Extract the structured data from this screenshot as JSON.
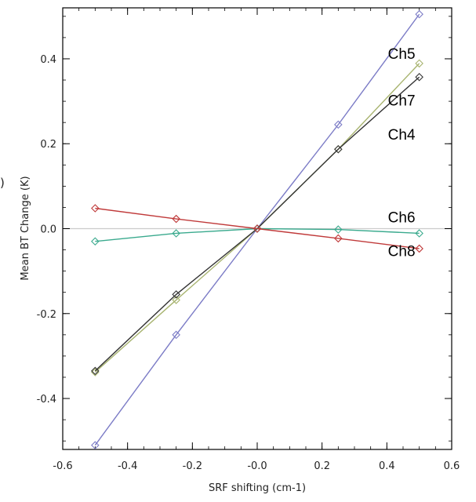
{
  "chart_data": {
    "type": "line",
    "title": "",
    "xlabel": "SRF shifting (cm-1)",
    "ylabel": "Mean BT Change (K)",
    "xlim": [
      -0.6,
      0.6
    ],
    "ylim": [
      -0.52,
      0.52
    ],
    "xticks": [
      "-0.6",
      "-0.4",
      "-0.2",
      "-0.0",
      "0.2",
      "0.4",
      "0.6"
    ],
    "yticks": [
      "-0.4",
      "-0.2",
      "0.0",
      "0.2",
      "0.4"
    ],
    "grid": false,
    "legend": "inline labels near line ends",
    "zero_line": 0.0,
    "stray_mark": ")",
    "series": [
      {
        "name": "Ch5",
        "color": "#7b7bc6",
        "x": [
          -0.5,
          -0.25,
          0.0,
          0.25,
          0.5
        ],
        "y": [
          -0.51,
          -0.25,
          0.0,
          0.245,
          0.505
        ],
        "label_at": [
          0.5,
          0.4
        ]
      },
      {
        "name": "Ch7",
        "color": "#a8b470",
        "x": [
          -0.5,
          -0.25,
          0.0,
          0.25,
          0.5
        ],
        "y": [
          -0.338,
          -0.168,
          0.0,
          0.187,
          0.389
        ],
        "label_at": [
          0.5,
          0.29
        ]
      },
      {
        "name": "Ch4",
        "color": "#333333",
        "x": [
          -0.5,
          -0.25,
          0.0,
          0.25,
          0.5
        ],
        "y": [
          -0.335,
          -0.155,
          0.0,
          0.187,
          0.357
        ],
        "label_at": [
          0.5,
          0.21
        ]
      },
      {
        "name": "Ch6",
        "color": "#3aaa8e",
        "x": [
          -0.5,
          -0.25,
          0.0,
          0.25,
          0.5
        ],
        "y": [
          -0.03,
          -0.011,
          0.0,
          -0.002,
          -0.011
        ],
        "label_at": [
          0.5,
          0.015
        ]
      },
      {
        "name": "Ch8",
        "color": "#c03a3a",
        "x": [
          -0.5,
          -0.25,
          0.0,
          0.25,
          0.5
        ],
        "y": [
          0.048,
          0.023,
          0.0,
          -0.023,
          -0.047
        ],
        "label_at": [
          0.5,
          -0.065
        ]
      }
    ]
  }
}
